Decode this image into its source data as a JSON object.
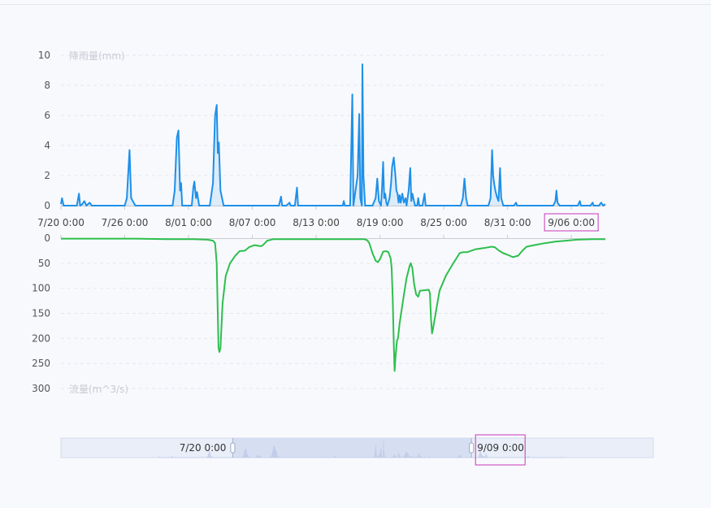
{
  "chart_data": [
    {
      "type": "line",
      "ylabel": "降雨量(mm)",
      "ylim": [
        0,
        10
      ],
      "yticks": [
        "0",
        "2",
        "4",
        "6",
        "8",
        "10"
      ],
      "xticks": [
        "7/20 0:00",
        "7/26 0:00",
        "8/01 0:00",
        "8/07 0:00",
        "8/13 0:00",
        "8/19 0:00",
        "8/25 0:00",
        "8/31 0:00",
        "9/06 0:00"
      ],
      "highlighted_tick": "9/06 0:00",
      "x_range_days": [
        0,
        51.2
      ],
      "grid": "dashed horizontal",
      "series": [
        {
          "color": "#1e90e8",
          "points": [
            [
              0,
              0.1
            ],
            [
              0.1,
              0.5
            ],
            [
              0.25,
              0
            ],
            [
              1.5,
              0
            ],
            [
              1.7,
              0.8
            ],
            [
              1.8,
              0
            ],
            [
              2,
              0.1
            ],
            [
              2.2,
              0.3
            ],
            [
              2.4,
              0
            ],
            [
              2.7,
              0.2
            ],
            [
              2.9,
              0
            ],
            [
              6,
              0
            ],
            [
              6.2,
              0.5
            ],
            [
              6.45,
              3.7
            ],
            [
              6.6,
              0.5
            ],
            [
              7,
              0
            ],
            [
              10.5,
              0
            ],
            [
              10.7,
              1
            ],
            [
              10.9,
              4.5
            ],
            [
              11.05,
              5
            ],
            [
              11.2,
              1
            ],
            [
              11.3,
              1.5
            ],
            [
              11.4,
              0
            ],
            [
              12.3,
              0
            ],
            [
              12.45,
              1.2
            ],
            [
              12.55,
              1.6
            ],
            [
              12.7,
              0.5
            ],
            [
              12.8,
              0.9
            ],
            [
              13,
              0
            ],
            [
              14,
              0
            ],
            [
              14.3,
              1.5
            ],
            [
              14.5,
              6
            ],
            [
              14.65,
              6.7
            ],
            [
              14.75,
              3.5
            ],
            [
              14.85,
              4.2
            ],
            [
              15,
              1
            ],
            [
              15.3,
              0
            ],
            [
              20.5,
              0
            ],
            [
              20.7,
              0.6
            ],
            [
              20.8,
              0
            ],
            [
              21.2,
              0
            ],
            [
              21.5,
              0.2
            ],
            [
              21.6,
              0
            ],
            [
              22,
              0
            ],
            [
              22.2,
              1.2
            ],
            [
              22.3,
              0
            ],
            [
              26.5,
              0
            ],
            [
              26.6,
              0.3
            ],
            [
              26.7,
              0
            ],
            [
              27.2,
              0
            ],
            [
              27.4,
              7.4
            ],
            [
              27.5,
              0
            ],
            [
              27.6,
              0.5
            ],
            [
              27.9,
              2
            ],
            [
              28.05,
              6.1
            ],
            [
              28.15,
              0.5
            ],
            [
              28.3,
              0
            ],
            [
              28.35,
              9.4
            ],
            [
              28.45,
              2
            ],
            [
              28.6,
              0
            ],
            [
              29.3,
              0
            ],
            [
              29.6,
              0.5
            ],
            [
              29.75,
              1.8
            ],
            [
              29.9,
              0.3
            ],
            [
              30.1,
              0
            ],
            [
              30.2,
              1.2
            ],
            [
              30.3,
              2.9
            ],
            [
              30.4,
              0.5
            ],
            [
              30.5,
              0.8
            ],
            [
              30.6,
              0.2
            ],
            [
              30.7,
              0
            ],
            [
              30.9,
              0.5
            ],
            [
              31.05,
              1.5
            ],
            [
              31.15,
              2.6
            ],
            [
              31.3,
              3.2
            ],
            [
              31.45,
              2
            ],
            [
              31.55,
              1
            ],
            [
              31.65,
              0.8
            ],
            [
              31.75,
              0.2
            ],
            [
              31.85,
              0.7
            ],
            [
              31.95,
              0.2
            ],
            [
              32.1,
              0.8
            ],
            [
              32.25,
              0.2
            ],
            [
              32.4,
              0.5
            ],
            [
              32.5,
              0
            ],
            [
              32.7,
              1
            ],
            [
              32.85,
              2.5
            ],
            [
              32.95,
              0.3
            ],
            [
              33.05,
              0.8
            ],
            [
              33.2,
              0.3
            ],
            [
              33.3,
              0
            ],
            [
              33.5,
              0
            ],
            [
              33.6,
              0.5
            ],
            [
              33.7,
              0
            ],
            [
              34,
              0
            ],
            [
              34.2,
              0.8
            ],
            [
              34.3,
              0
            ],
            [
              37.6,
              0
            ],
            [
              37.8,
              0.5
            ],
            [
              37.95,
              1.8
            ],
            [
              38.1,
              0.5
            ],
            [
              38.25,
              0
            ],
            [
              40.2,
              0
            ],
            [
              40.4,
              0.5
            ],
            [
              40.55,
              3.7
            ],
            [
              40.65,
              2
            ],
            [
              40.75,
              1.4
            ],
            [
              40.85,
              1
            ],
            [
              41,
              0.6
            ],
            [
              41.15,
              0.3
            ],
            [
              41.3,
              2.5
            ],
            [
              41.4,
              0.5
            ],
            [
              41.6,
              0
            ],
            [
              42.6,
              0
            ],
            [
              42.8,
              0.2
            ],
            [
              42.9,
              0
            ],
            [
              46.3,
              0
            ],
            [
              46.5,
              0.3
            ],
            [
              46.6,
              1
            ],
            [
              46.7,
              0.2
            ],
            [
              46.9,
              0
            ],
            [
              48.6,
              0
            ],
            [
              48.8,
              0.3
            ],
            [
              48.9,
              0
            ],
            [
              49.8,
              0
            ],
            [
              50,
              0.2
            ],
            [
              50.1,
              0
            ],
            [
              50.6,
              0
            ],
            [
              50.8,
              0.2
            ],
            [
              51,
              0
            ],
            [
              51.2,
              0.1
            ]
          ]
        }
      ]
    },
    {
      "type": "line",
      "ylabel": "流量(m^3/s)",
      "ylim": [
        0,
        300
      ],
      "y_inverted": true,
      "yticks": [
        "0",
        "50",
        "100",
        "150",
        "200",
        "250",
        "300"
      ],
      "x_range_days": [
        0,
        51.2
      ],
      "grid": "dashed horizontal",
      "series": [
        {
          "color": "#2dbf4e",
          "points": [
            [
              0,
              1
            ],
            [
              7,
              1
            ],
            [
              10,
              2
            ],
            [
              12.5,
              2
            ],
            [
              13.8,
              3
            ],
            [
              14.3,
              5
            ],
            [
              14.5,
              10
            ],
            [
              14.65,
              50
            ],
            [
              14.75,
              150
            ],
            [
              14.82,
              218
            ],
            [
              14.9,
              227
            ],
            [
              15,
              220
            ],
            [
              15.2,
              130
            ],
            [
              15.5,
              75
            ],
            [
              15.9,
              50
            ],
            [
              16.4,
              35
            ],
            [
              16.8,
              26
            ],
            [
              17.3,
              25
            ],
            [
              17.7,
              18
            ],
            [
              18.2,
              14
            ],
            [
              18.8,
              16
            ],
            [
              19,
              14
            ],
            [
              19.4,
              5
            ],
            [
              20,
              2
            ],
            [
              26,
              2
            ],
            [
              28.5,
              2
            ],
            [
              28.8,
              4
            ],
            [
              29,
              10
            ],
            [
              29.3,
              30
            ],
            [
              29.6,
              45
            ],
            [
              29.8,
              48
            ],
            [
              30,
              42
            ],
            [
              30.3,
              27
            ],
            [
              30.6,
              26
            ],
            [
              30.8,
              28
            ],
            [
              31,
              40
            ],
            [
              31.1,
              60
            ],
            [
              31.2,
              120
            ],
            [
              31.3,
              210
            ],
            [
              31.38,
              265
            ],
            [
              31.45,
              240
            ],
            [
              31.6,
              205
            ],
            [
              31.7,
              200
            ],
            [
              31.85,
              170
            ],
            [
              32.2,
              120
            ],
            [
              32.5,
              80
            ],
            [
              32.8,
              55
            ],
            [
              32.9,
              50
            ],
            [
              33.05,
              60
            ],
            [
              33.2,
              90
            ],
            [
              33.4,
              112
            ],
            [
              33.6,
              117
            ],
            [
              33.75,
              105
            ],
            [
              34.6,
              103
            ],
            [
              34.7,
              110
            ],
            [
              34.8,
              160
            ],
            [
              34.9,
              190
            ],
            [
              35,
              180
            ],
            [
              35.2,
              155
            ],
            [
              35.6,
              105
            ],
            [
              36.2,
              75
            ],
            [
              36.9,
              50
            ],
            [
              37.5,
              30
            ],
            [
              37.8,
              28
            ],
            [
              38.2,
              28
            ],
            [
              38.6,
              25
            ],
            [
              39,
              22
            ],
            [
              40,
              19
            ],
            [
              40.5,
              17
            ],
            [
              40.8,
              18
            ],
            [
              41.2,
              25
            ],
            [
              41.6,
              30
            ],
            [
              42,
              33
            ],
            [
              42.5,
              38
            ],
            [
              43,
              35
            ],
            [
              43.4,
              25
            ],
            [
              43.8,
              17
            ],
            [
              44.5,
              14
            ],
            [
              45.5,
              10
            ],
            [
              46.5,
              7
            ],
            [
              47.5,
              5
            ],
            [
              48.5,
              3
            ],
            [
              50,
              2
            ],
            [
              51.2,
              2
            ]
          ]
        }
      ]
    }
  ],
  "data_zoom": {
    "start_label": "7/20 0:00",
    "end_label": "9/09 0:00",
    "highlighted_label": "9/09 0:00",
    "start_fraction": 0.29,
    "end_fraction": 0.693
  },
  "colors": {
    "rain": "#1e90e8",
    "flow": "#2dbf4e",
    "highlight": "#c837b8",
    "grid": "#e4e7ee"
  }
}
